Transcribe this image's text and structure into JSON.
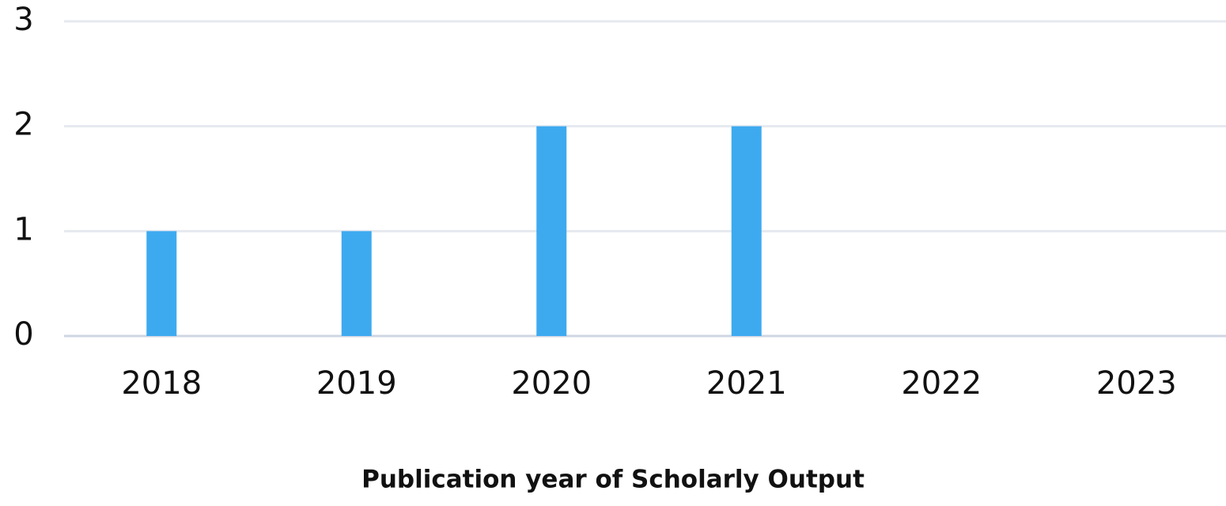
{
  "chart_data": {
    "type": "bar",
    "x_label": "Publication year of Scholarly Output",
    "categories": [
      "2018",
      "2019",
      "2020",
      "2021",
      "2022",
      "2023"
    ],
    "values": [
      1,
      1,
      2,
      2,
      0,
      0
    ],
    "color": "#3daaf0",
    "ylim": [
      0,
      3
    ],
    "yticks": [
      0,
      1,
      2,
      3
    ],
    "grid": true
  }
}
